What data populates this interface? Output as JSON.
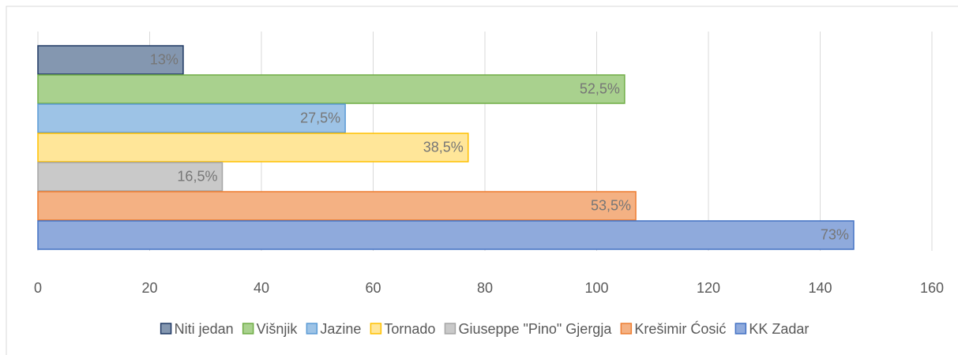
{
  "chart_data": {
    "type": "barh",
    "series": [
      {
        "name": "Niti jedan",
        "color": "#8497b0",
        "edgecolor": "#1f3864",
        "values": [
          26
        ],
        "value_labels": [
          "13%"
        ]
      },
      {
        "name": "Višnjik",
        "color": "#a9d18e",
        "edgecolor": "#70ad47",
        "values": [
          105
        ],
        "value_labels": [
          "52,5%"
        ]
      },
      {
        "name": "Jazine",
        "color": "#9dc3e6",
        "edgecolor": "#5b9bd5",
        "values": [
          55
        ],
        "value_labels": [
          "27,5%"
        ]
      },
      {
        "name": "Tornado",
        "color": "#ffe699",
        "edgecolor": "#ffc000",
        "values": [
          77
        ],
        "value_labels": [
          "38,5%"
        ]
      },
      {
        "name": "Giuseppe \"Pino\" Gjergja",
        "color": "#c9c9c9",
        "edgecolor": "#a5a5a5",
        "values": [
          33
        ],
        "value_labels": [
          "16,5%"
        ]
      },
      {
        "name": "Krešimir Ćosić",
        "color": "#f4b183",
        "edgecolor": "#ed7d31",
        "values": [
          107
        ],
        "value_labels": [
          "53,5%"
        ]
      },
      {
        "name": "KK Zadar",
        "color": "#8faadc",
        "edgecolor": "#4472c4",
        "values": [
          146
        ],
        "value_labels": [
          "73%"
        ]
      }
    ],
    "xlim": [
      0,
      160
    ],
    "xticks": [
      0,
      20,
      40,
      60,
      80,
      100,
      120,
      140,
      160
    ],
    "grid": true,
    "legend": "bottom"
  }
}
